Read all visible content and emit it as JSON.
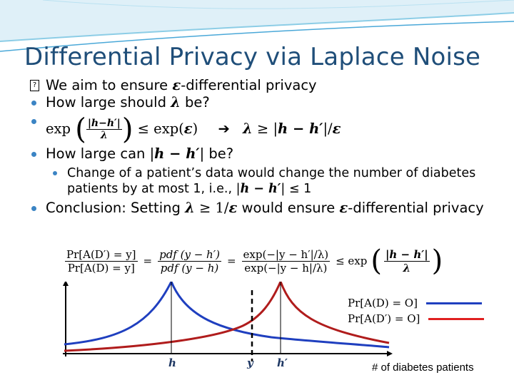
{
  "slide": {
    "title": "Differential Privacy via Laplace Noise",
    "bullets": [
      {
        "pre": "We aim to ensure ",
        "sym": "ε",
        "post": "-differential privacy"
      },
      {
        "pre": "How large should ",
        "sym": "λ",
        "post": " be?"
      },
      {
        "exp_text": "exp",
        "frac_num": "|h−h′|",
        "frac_den": "λ",
        "rel": " ≤ exp(",
        "eps": "ε",
        "close": ")",
        "arrow": "➔",
        "lam": "λ",
        "ge": " ≥ |",
        "hh": "h − h′",
        "tail": "|/",
        "eps2": "ε"
      },
      {
        "pre": "How large can |",
        "sym": "h − h′",
        "post": "| be?"
      },
      {
        "line1": "Change of a patient’s data would change the number of diabetes",
        "line2_pre": "patients by at most 1, i.e., |",
        "line2_sym": "h − h′",
        "line2_post": "| ≤ 1"
      },
      {
        "pre": "Conclusion: Setting ",
        "lam": "λ",
        "mid": " ≥ 1/",
        "eps": "ε",
        "mid2": " would ensure ",
        "eps2": "ε",
        "post": "-differential privacy"
      }
    ]
  },
  "formula": {
    "f1_num": "Pr[A(D′) = y]",
    "f1_den": "Pr[A(D) = y]",
    "eq1": "=",
    "f2_num": "pdf (y − h′)",
    "f2_den": "pdf (y − h)",
    "eq2": "=",
    "f3_num": "exp(−|y − h′|/λ)",
    "f3_den": "exp(−|y − h|/λ)",
    "le": "≤ exp",
    "f4_num": "|h − h′|",
    "f4_den": "λ"
  },
  "chart": {
    "legend": [
      {
        "label": "Pr[A(D) = O]",
        "color": "#1f3fbf"
      },
      {
        "label": "Pr[A(D′) = O]",
        "color": "#e02020"
      }
    ],
    "ticks": {
      "h": "h",
      "y": "y",
      "hp": "h′"
    },
    "xlabel": "# of diabetes patients",
    "colors": {
      "blue_curve": "#1f3fbf",
      "red_curve": "#b01c1c",
      "accent": "#1f4e79"
    }
  }
}
